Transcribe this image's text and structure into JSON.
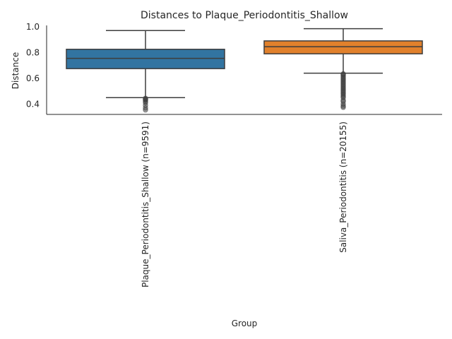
{
  "chart_data": {
    "type": "box",
    "title": "Distances to Plaque_Periodontitis_Shallow",
    "xlabel": "Group",
    "ylabel": "Distance",
    "ylim": [
      0.32,
      1.01
    ],
    "yticks": [
      "0.4",
      "0.6",
      "0.8",
      "1.0"
    ],
    "grid": false,
    "categories": [
      "Plaque_Periodontitis_Shallow (n=9591)",
      "Saliva_Periodontitis (n=20155)"
    ],
    "colors": [
      "#3274a1",
      "#e1812c"
    ],
    "boxes": [
      {
        "whisker_low": 0.45,
        "q1": 0.675,
        "median": 0.755,
        "q3": 0.825,
        "whisker_high": 0.97,
        "outliers": [
          0.445,
          0.44,
          0.435,
          0.43,
          0.42,
          0.41,
          0.39,
          0.37,
          0.355
        ]
      },
      {
        "whisker_low": 0.64,
        "q1": 0.79,
        "median": 0.845,
        "q3": 0.89,
        "whisker_high": 0.985,
        "outliers": [
          0.635,
          0.63,
          0.62,
          0.61,
          0.6,
          0.59,
          0.58,
          0.57,
          0.56,
          0.55,
          0.54,
          0.53,
          0.52,
          0.51,
          0.5,
          0.49,
          0.48,
          0.47,
          0.46,
          0.45,
          0.43,
          0.42,
          0.4,
          0.385,
          0.375
        ]
      }
    ]
  }
}
